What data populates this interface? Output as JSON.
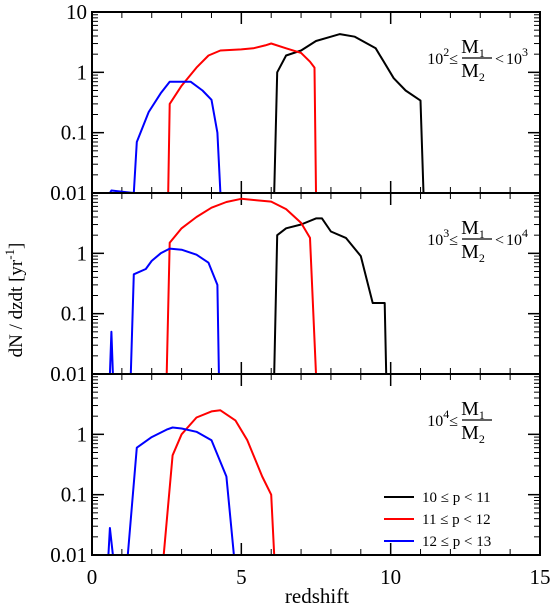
{
  "chart_data": {
    "type": "line",
    "xlabel": "redshift",
    "ylabel": "dN / dzdt  [yr",
    "ylabel_sup": "-1",
    "ylabel_end": "]",
    "xlim": [
      0,
      15
    ],
    "x_ticks": [
      0,
      5,
      10,
      15
    ],
    "x_tick_labels": [
      "0",
      "5",
      "10",
      "15"
    ],
    "y_scale": "log",
    "grid": false,
    "legend_position": "bottom-right",
    "legend": [
      {
        "label": "10 ≤ p < 11",
        "color": "#000000"
      },
      {
        "label": "11 ≤ p < 12",
        "color": "#ff0000"
      },
      {
        "label": "12 ≤ p < 13",
        "color": "#0000ff"
      }
    ],
    "panels": [
      {
        "ylim": [
          0.01,
          10
        ],
        "y_ticks": [
          0.01,
          0.1,
          1,
          10
        ],
        "y_tick_labels": [
          "0.01",
          "0.1",
          "1",
          "10"
        ],
        "annotation": {
          "prefix": "10",
          "prefix_sup": "2",
          "left_op": "≤",
          "num": "M",
          "num_sub": "1",
          "den": "M",
          "den_sub": "2",
          "right_op": "<",
          "suffix": "10",
          "suffix_sup": "3"
        },
        "series": [
          {
            "color": "#000000",
            "x": [
              6.1,
              6.2,
              6.5,
              7.0,
              7.5,
              8.0,
              8.3,
              8.8,
              9.5,
              10.1,
              10.5,
              11.0,
              11.1
            ],
            "y": [
              0.01,
              1.0,
              1.9,
              2.3,
              3.3,
              3.9,
              4.3,
              3.9,
              2.5,
              0.8,
              0.5,
              0.34,
              0.01
            ]
          },
          {
            "color": "#ff0000",
            "x": [
              2.55,
              2.6,
              3.0,
              3.5,
              3.9,
              4.3,
              5.0,
              5.4,
              5.8,
              6.0,
              6.5,
              7.0,
              7.3,
              7.45,
              7.5
            ],
            "y": [
              0.01,
              0.3,
              0.6,
              1.2,
              1.9,
              2.3,
              2.4,
              2.5,
              2.8,
              3.0,
              2.5,
              2.1,
              1.5,
              1.2,
              0.01
            ]
          },
          {
            "color": "#0000ff",
            "x": [
              0.6,
              0.65,
              1.4,
              1.5,
              1.9,
              2.3,
              2.6,
              3.3,
              3.7,
              4.0,
              4.2,
              4.3
            ],
            "y": [
              0.01,
              0.011,
              0.01,
              0.07,
              0.22,
              0.45,
              0.7,
              0.7,
              0.5,
              0.35,
              0.1,
              0.01
            ]
          }
        ]
      },
      {
        "ylim": [
          0.01,
          10
        ],
        "y_ticks": [
          0.01,
          0.1,
          1,
          10
        ],
        "y_tick_labels": [
          "0.01",
          "0.1",
          "1",
          ""
        ],
        "annotation": {
          "prefix": "10",
          "prefix_sup": "3",
          "left_op": "≤",
          "num": "M",
          "num_sub": "1",
          "den": "M",
          "den_sub": "2",
          "right_op": "<",
          "suffix": "10",
          "suffix_sup": "4"
        },
        "series": [
          {
            "color": "#000000",
            "x": [
              6.1,
              6.2,
              6.5,
              7.0,
              7.5,
              7.7,
              8.0,
              8.5,
              9.0,
              9.4,
              9.8,
              9.85,
              9.9
            ],
            "y": [
              0.01,
              2.0,
              2.6,
              3.0,
              3.8,
              3.8,
              2.3,
              1.8,
              0.9,
              0.15,
              0.15,
              0.01,
              0.01
            ]
          },
          {
            "color": "#ff0000",
            "x": [
              2.5,
              2.6,
              3.0,
              3.5,
              4.0,
              4.5,
              5.0,
              5.5,
              6.0,
              6.5,
              7.0,
              7.3,
              7.5
            ],
            "y": [
              0.01,
              1.5,
              2.6,
              4.0,
              5.7,
              7.1,
              8.0,
              7.6,
              7.2,
              5.4,
              3.2,
              1.8,
              0.01
            ]
          },
          {
            "color": "#0000ff",
            "x": [
              0.6,
              0.65,
              0.7,
              1.3,
              1.4,
              1.8,
              2.0,
              2.3,
              2.6,
              3.0,
              3.5,
              3.9,
              4.2,
              4.25
            ],
            "y": [
              0.01,
              0.05,
              0.01,
              0.01,
              0.45,
              0.55,
              0.75,
              1.0,
              1.2,
              1.15,
              0.95,
              0.7,
              0.3,
              0.01
            ]
          }
        ]
      },
      {
        "ylim": [
          0.01,
          10
        ],
        "y_ticks": [
          0.01,
          0.1,
          1,
          10
        ],
        "y_tick_labels": [
          "0.01",
          "0.1",
          "1",
          ""
        ],
        "annotation": {
          "prefix": "10",
          "prefix_sup": "4",
          "left_op": "≤",
          "num": "M",
          "num_sub": "1",
          "den": "M",
          "den_sub": "2",
          "right_op": "",
          "suffix": "",
          "suffix_sup": ""
        },
        "series": [
          {
            "color": "#ff0000",
            "x": [
              2.35,
              2.4,
              2.7,
              3.0,
              3.5,
              4.0,
              4.3,
              4.8,
              5.2,
              5.7,
              6.0,
              6.1
            ],
            "y": [
              0.01,
              0.01,
              0.45,
              1.0,
              1.9,
              2.4,
              2.5,
              1.7,
              0.8,
              0.2,
              0.1,
              0.01
            ]
          },
          {
            "color": "#0000ff",
            "x": [
              0.55,
              0.6,
              0.7,
              1.2,
              1.5,
              2.0,
              2.5,
              2.7,
              3.0,
              3.5,
              4.0,
              4.5,
              4.75
            ],
            "y": [
              0.01,
              0.028,
              0.01,
              0.01,
              0.6,
              0.9,
              1.2,
              1.3,
              1.25,
              1.1,
              0.8,
              0.2,
              0.01
            ]
          }
        ]
      }
    ]
  }
}
